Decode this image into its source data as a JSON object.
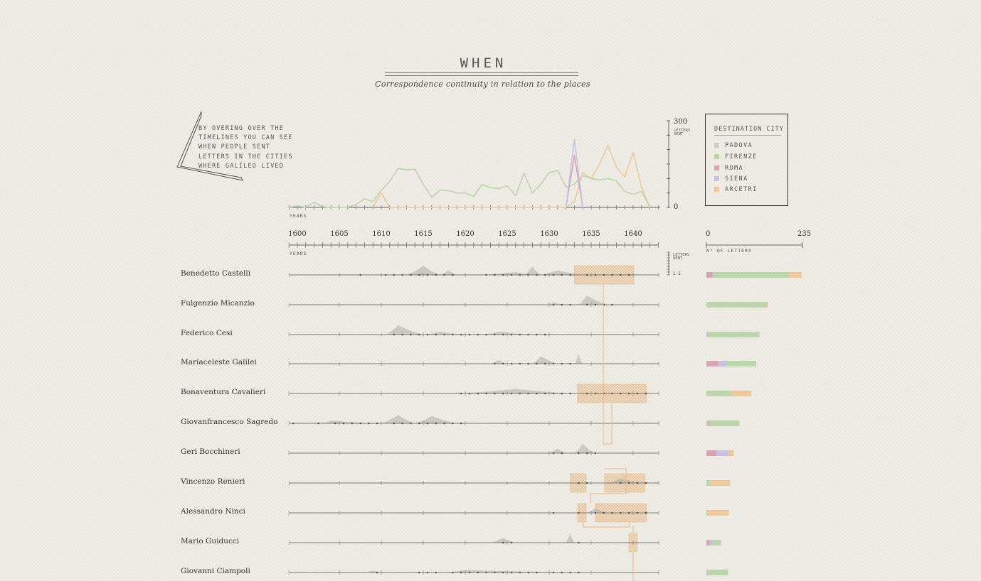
{
  "header": {
    "title": "WHEN",
    "subtitle": "Correspondence continuity in relation to the places"
  },
  "hint": "BY OVERING OVER THE TIMELINES YOU CAN SEE WHEN PEOPLE SENT LETTERS IN THE CITIES WHERE GALILEO LIVED",
  "legend": {
    "title": "DESTINATION CITY",
    "items": [
      {
        "label": "PADOVA",
        "color": "#cfcdb6"
      },
      {
        "label": "FIRENZE",
        "color": "#bcd5ac"
      },
      {
        "label": "ROMA",
        "color": "#d9a4b5"
      },
      {
        "label": "SIENA",
        "color": "#c6c2e0"
      },
      {
        "label": "ARCETRI",
        "color": "#efc99c"
      }
    ]
  },
  "labels": {
    "letters_sent": "LETTERS SENT",
    "years": "YEARS",
    "range_label": "1-5",
    "n_letters": "N° OF LETTERS"
  },
  "chart_data": [
    {
      "type": "line",
      "xlim": [
        1599,
        1643
      ],
      "ylim": [
        0,
        300
      ],
      "y_ticks": [
        "300",
        "0"
      ],
      "series": [
        {
          "name": "FIRENZE",
          "color": "#bcd5ac",
          "x": [
            1599,
            1600,
            1601,
            1602,
            1603,
            1604,
            1605,
            1606,
            1607,
            1608,
            1609,
            1610,
            1611,
            1612,
            1613,
            1614,
            1615,
            1616,
            1617,
            1618,
            1619,
            1620,
            1621,
            1622,
            1623,
            1624,
            1625,
            1626,
            1627,
            1628,
            1629,
            1630,
            1631,
            1632,
            1633,
            1634,
            1635,
            1636,
            1637,
            1638,
            1639,
            1640,
            1641,
            1642
          ],
          "y": [
            0,
            5,
            0,
            18,
            2,
            0,
            0,
            0,
            10,
            30,
            20,
            60,
            90,
            135,
            130,
            132,
            80,
            35,
            60,
            58,
            50,
            50,
            38,
            80,
            68,
            65,
            75,
            40,
            118,
            50,
            80,
            120,
            128,
            70,
            80,
            110,
            100,
            95,
            100,
            92,
            55,
            45,
            55,
            0
          ]
        },
        {
          "name": "ARCETRI",
          "color": "#efc99c",
          "x": [
            1609,
            1610,
            1611,
            1632,
            1633,
            1634,
            1635,
            1636,
            1637,
            1638,
            1639,
            1640,
            1641,
            1642
          ],
          "y": [
            0,
            50,
            0,
            0,
            20,
            120,
            100,
            150,
            215,
            140,
            105,
            190,
            70,
            0
          ]
        },
        {
          "name": "ROMA",
          "color": "#d9a4b5",
          "x": [
            1632,
            1633,
            1634
          ],
          "y": [
            0,
            180,
            0
          ]
        },
        {
          "name": "SIENA",
          "color": "#c6c2e0",
          "x": [
            1632,
            1633,
            1634
          ],
          "y": [
            0,
            235,
            0
          ]
        }
      ]
    },
    {
      "type": "area",
      "x_ticks": [
        "1600",
        "1605",
        "1610",
        "1615",
        "1620",
        "1625",
        "1630",
        "1635",
        "1640"
      ],
      "rows": [
        {
          "name": "Benedetto Castelli",
          "peaks": [
            [
              1615,
              1613,
              1617,
              1.0
            ],
            [
              1618,
              1617,
              1619,
              0.5
            ],
            [
              1626,
              1622,
              1628,
              0.3
            ],
            [
              1628,
              1627,
              1629,
              0.9
            ],
            [
              1631,
              1629,
              1634,
              0.5
            ]
          ],
          "dots": [
            1607,
            1610,
            1611,
            1612,
            1613,
            1614,
            1615,
            1616,
            1617,
            1618,
            1622,
            1623,
            1624,
            1625,
            1626,
            1627,
            1628,
            1629,
            1630,
            1631,
            1632,
            1634,
            1635,
            1636,
            1637,
            1638,
            1639
          ],
          "highlights": [
            [
              1633,
              1640.1
            ]
          ]
        },
        {
          "name": "Fulgenzio Micanzio",
          "peaks": [
            [
              1630.5,
              1630,
              1631.5,
              0.3
            ],
            [
              1634.5,
              1633.5,
              1637,
              1.0
            ]
          ],
          "dots": [
            1630,
            1631,
            1632,
            1634,
            1635,
            1636,
            1637
          ],
          "highlights": []
        },
        {
          "name": "Federico Cesi",
          "peaks": [
            [
              1612,
              1610.5,
              1615,
              1.0
            ],
            [
              1617,
              1615,
              1620,
              0.3
            ],
            [
              1624,
              1622,
              1628,
              0.3
            ]
          ],
          "dots": [
            1611,
            1612,
            1613,
            1614,
            1615,
            1616,
            1617,
            1618,
            1619,
            1620,
            1621,
            1622,
            1623,
            1624,
            1625,
            1626,
            1627,
            1628,
            1629
          ],
          "highlights": []
        },
        {
          "name": "Mariaceleste Galilei",
          "peaks": [
            [
              1624,
              1623,
              1625,
              0.4
            ],
            [
              1629,
              1628,
              1631,
              0.8
            ],
            [
              1633.5,
              1633,
              1634,
              1.0
            ]
          ],
          "dots": [
            1623,
            1624,
            1625,
            1626,
            1627,
            1628,
            1629,
            1630,
            1631,
            1632
          ],
          "highlights": []
        },
        {
          "name": "Bonaventura Cavalieri",
          "peaks": [
            [
              1626,
              1619,
              1633,
              0.5
            ]
          ],
          "dots": [
            1619,
            1620,
            1621,
            1622,
            1623,
            1624,
            1625,
            1626,
            1627,
            1628,
            1629,
            1630,
            1631,
            1632,
            1634,
            1635,
            1636,
            1637,
            1638,
            1639,
            1640,
            1641
          ],
          "highlights": [
            [
              1633.5,
              1641.6
            ]
          ]
        },
        {
          "name": "Giovanfrancesco Sagredo",
          "peaks": [
            [
              1604,
              1603,
              1609,
              0.3
            ],
            [
              1612,
              1610,
              1614,
              0.9
            ],
            [
              1616,
              1614,
              1619,
              0.8
            ]
          ],
          "dots": [
            1599,
            1602,
            1604,
            1605,
            1606,
            1607,
            1608,
            1609,
            1611,
            1612,
            1613,
            1614,
            1615,
            1616,
            1617,
            1618,
            1619
          ],
          "highlights": []
        },
        {
          "name": "Geri Bocchineri",
          "peaks": [
            [
              1631,
              1630,
              1632,
              0.5
            ],
            [
              1634,
              1633,
              1635.5,
              1.0
            ]
          ],
          "dots": [
            1630,
            1631,
            1633,
            1634,
            1635
          ],
          "highlights": []
        },
        {
          "name": "Vincenzo Renieri",
          "peaks": [
            [
              1638.5,
              1637,
              1641,
              0.5
            ]
          ],
          "dots": [
            1633,
            1634,
            1638,
            1639,
            1640,
            1641
          ],
          "highlights": [
            [
              1632.5,
              1634.4
            ],
            [
              1636.6,
              1641.4
            ]
          ]
        },
        {
          "name": "Alessandro Ninci",
          "peaks": [
            [
              1635.5,
              1634.5,
              1637,
              0.5
            ]
          ],
          "dots": [
            1630,
            1633,
            1635,
            1636,
            1637,
            1638,
            1639,
            1640,
            1641
          ],
          "highlights": [
            [
              1633.4,
              1634.4
            ],
            [
              1635.5,
              1641.6
            ]
          ]
        },
        {
          "name": "Mario Guiducci",
          "peaks": [
            [
              1624.5,
              1623,
              1626,
              0.5
            ],
            [
              1632.5,
              1632,
              1633,
              1.0
            ]
          ],
          "dots": [
            1624,
            1625,
            1633
          ],
          "highlights": [
            [
              1639.5,
              1640.5
            ]
          ]
        },
        {
          "name": "Giovanni Ciampoli",
          "peaks": [
            [
              1609,
              1608,
              1610,
              0.2
            ],
            [
              1620,
              1617,
              1634,
              0.25
            ]
          ],
          "dots": [
            1609,
            1614,
            1615,
            1616,
            1618,
            1619,
            1620,
            1621,
            1622,
            1623,
            1624,
            1625,
            1626,
            1627,
            1628,
            1630,
            1631,
            1632,
            1633
          ],
          "highlights": []
        }
      ]
    },
    {
      "type": "bar",
      "stacked": true,
      "xlim": [
        0,
        235
      ],
      "x_ticks": [
        "0",
        "235"
      ],
      "categories": [
        "Benedetto Castelli",
        "Fulgenzio Micanzio",
        "Federico Cesi",
        "Mariaceleste Galilei",
        "Bonaventura Cavalieri",
        "Giovanfrancesco Sagredo",
        "Geri Bocchineri",
        "Vincenzo Renieri",
        "Alessandro Ninci",
        "Mario Guiducci",
        "Giovanni Ciampoli"
      ],
      "series": [
        {
          "name": "PADOVA",
          "values": [
            0,
            0,
            0,
            0,
            0,
            3,
            0,
            0,
            0,
            0,
            0
          ]
        },
        {
          "name": "ROMA",
          "values": [
            15,
            0,
            0,
            28,
            0,
            3,
            25,
            0,
            0,
            8,
            0
          ]
        },
        {
          "name": "SIENA",
          "values": [
            0,
            0,
            4,
            22,
            0,
            0,
            30,
            0,
            0,
            8,
            3
          ]
        },
        {
          "name": "FIRENZE",
          "values": [
            188,
            148,
            126,
            72,
            62,
            75,
            0,
            8,
            5,
            20,
            50
          ]
        },
        {
          "name": "ARCETRI",
          "values": [
            30,
            3,
            0,
            0,
            48,
            0,
            12,
            50,
            50,
            0,
            0
          ]
        }
      ]
    }
  ]
}
